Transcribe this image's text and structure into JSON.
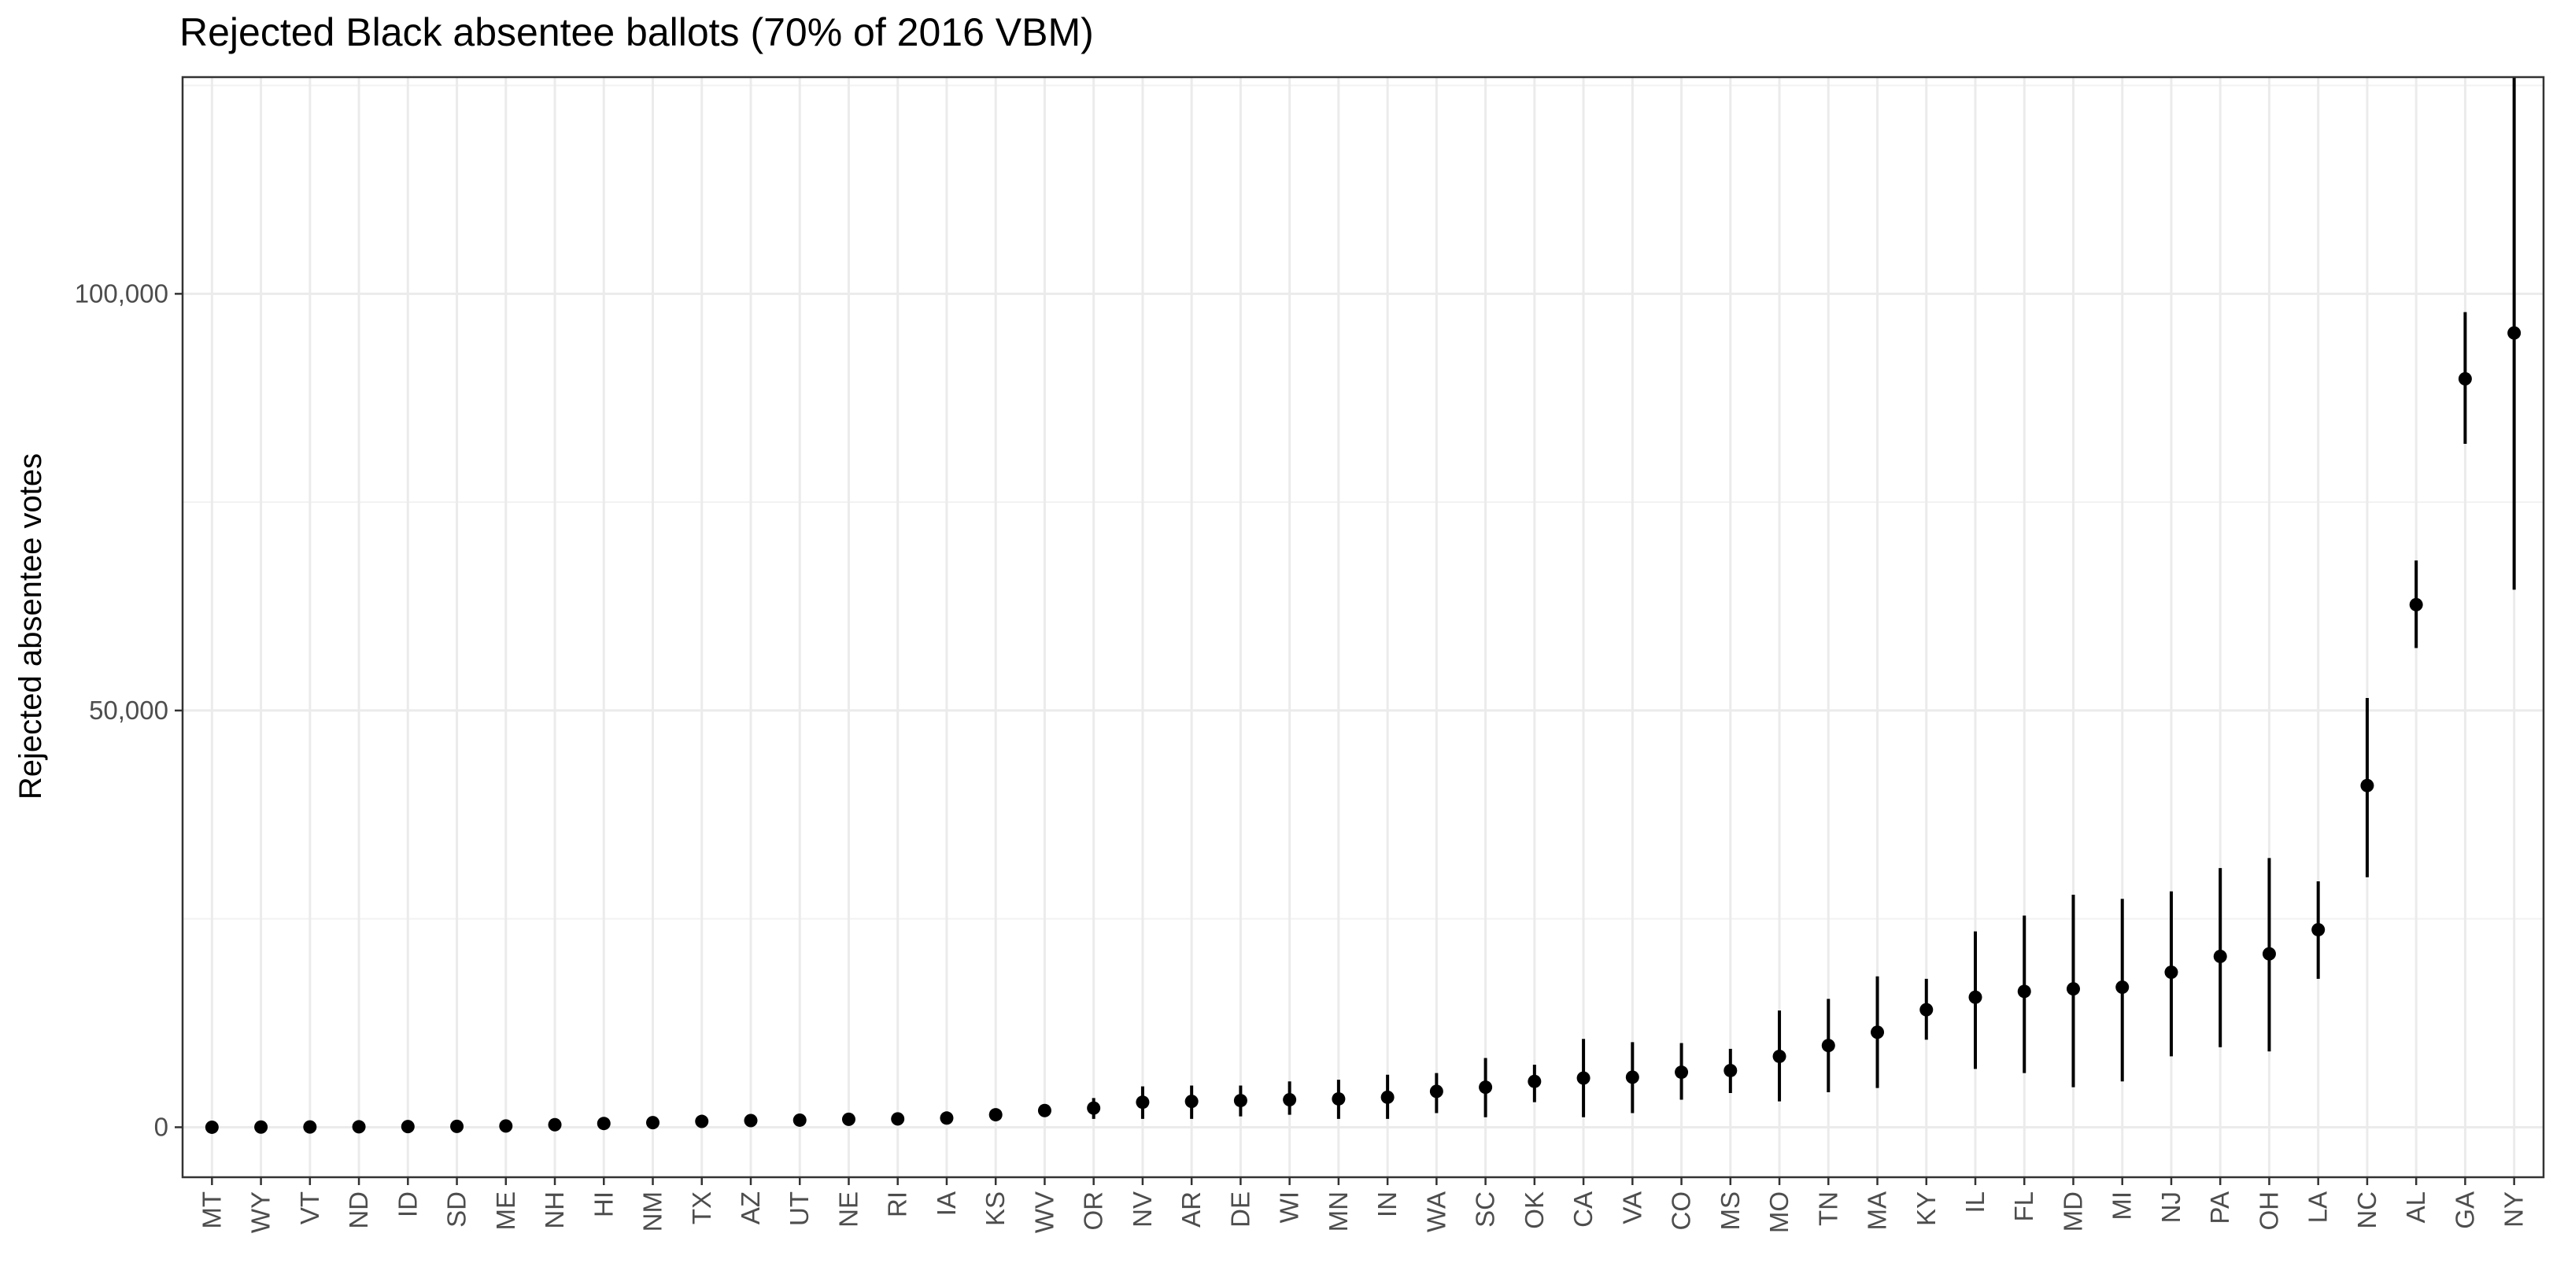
{
  "chart_data": {
    "type": "scatter",
    "subtype": "point-range",
    "title": "Rejected Black absentee ballots (70% of 2016 VBM)",
    "xlabel": "",
    "ylabel": "Rejected absentee votes",
    "ylim": [
      -6000,
      126000
    ],
    "y_ticks": [
      0,
      50000,
      100000
    ],
    "y_tick_labels": [
      "0",
      "50,000",
      "100,000"
    ],
    "grid": true,
    "legend": "none",
    "colors": {
      "point": "#000000",
      "errorbar": "#000000",
      "grid_major": "#ebebeb",
      "grid_minor": "#f2f2f2",
      "panel_border": "#333333",
      "tick_text": "#4d4d4d"
    },
    "categories": [
      "MT",
      "WY",
      "VT",
      "ND",
      "ID",
      "SD",
      "ME",
      "NH",
      "HI",
      "NM",
      "TX",
      "AZ",
      "UT",
      "NE",
      "RI",
      "IA",
      "KS",
      "WV",
      "OR",
      "NV",
      "AR",
      "DE",
      "WI",
      "MN",
      "IN",
      "WA",
      "SC",
      "OK",
      "CA",
      "VA",
      "CO",
      "MS",
      "MO",
      "TN",
      "MA",
      "KY",
      "IL",
      "FL",
      "MD",
      "MI",
      "NJ",
      "PA",
      "OH",
      "LA",
      "NC",
      "AL",
      "GA",
      "NY"
    ],
    "values": [
      0,
      20,
      30,
      50,
      80,
      100,
      150,
      300,
      450,
      550,
      700,
      800,
      850,
      950,
      1000,
      1100,
      1500,
      2000,
      2300,
      3000,
      3100,
      3200,
      3300,
      3400,
      3600,
      4300,
      4800,
      5500,
      5900,
      6000,
      6600,
      6800,
      8500,
      9800,
      11400,
      14100,
      15600,
      16300,
      16600,
      16800,
      18600,
      20500,
      20800,
      23700,
      41000,
      62700,
      89800,
      95300
    ],
    "lower": [
      0,
      0,
      0,
      0,
      0,
      0,
      0,
      100,
      200,
      300,
      400,
      500,
      550,
      600,
      650,
      700,
      1000,
      1300,
      1000,
      1000,
      1000,
      1300,
      1500,
      1000,
      1000,
      1700,
      1200,
      3000,
      1200,
      1700,
      3300,
      4100,
      3100,
      4200,
      4700,
      10500,
      7000,
      6500,
      4800,
      5500,
      8500,
      9600,
      9100,
      17800,
      30000,
      57500,
      82000,
      64500
    ],
    "upper": [
      100,
      150,
      200,
      250,
      300,
      350,
      400,
      500,
      700,
      800,
      1000,
      1100,
      1200,
      1400,
      1400,
      1500,
      2000,
      2700,
      3500,
      4900,
      5000,
      5000,
      5500,
      5700,
      6300,
      6500,
      8300,
      7500,
      10600,
      10200,
      10100,
      9400,
      14000,
      15400,
      18100,
      17800,
      23500,
      25400,
      27900,
      27400,
      28300,
      31100,
      32300,
      29500,
      51500,
      68000,
      97800,
      126000
    ]
  }
}
